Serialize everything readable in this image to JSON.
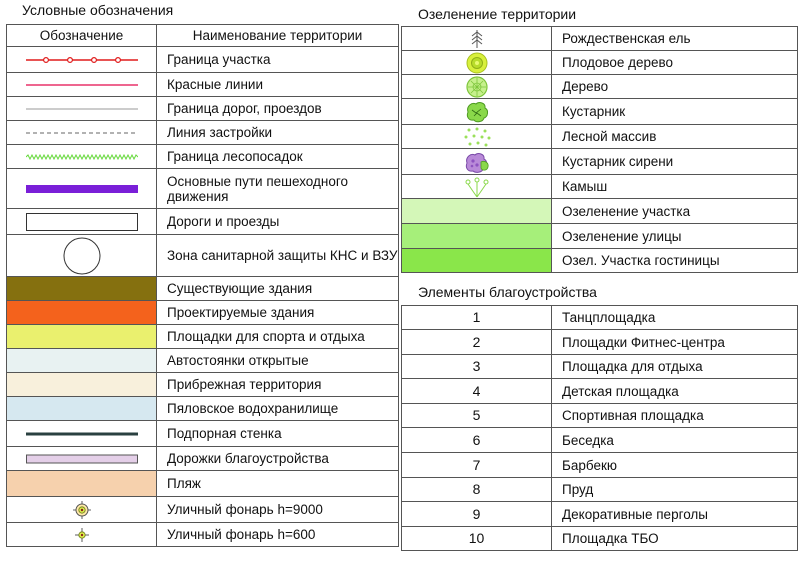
{
  "legend": {
    "title": "Условные обозначения",
    "header": {
      "symbol": "Обозначение",
      "name": "Наименование территории"
    },
    "rows": [
      {
        "label": "Граница участка",
        "icon": "red-boundary-line-icon"
      },
      {
        "label": "Красные линии",
        "icon": "red-line-icon"
      },
      {
        "label": "Граница дорог, проездов",
        "icon": "gray-thin-line-icon"
      },
      {
        "label": "Линия застройки",
        "icon": "dashed-line-icon"
      },
      {
        "label": "Граница лесопосадок",
        "icon": "green-wavy-line-icon"
      },
      {
        "label": "Основные пути пешеходного движения",
        "icon": "purple-bar-icon",
        "color": "#7a1fd8"
      },
      {
        "label": "Дороги и проезды",
        "icon": "road-rect-icon"
      },
      {
        "label": "Зона санитарной защиты КНС и ВЗУ",
        "icon": "circle-zone-icon"
      },
      {
        "label": "Существующие здания",
        "color": "#85700f"
      },
      {
        "label": "Проектируемые здания",
        "color": "#f4621c"
      },
      {
        "label": "Площадки для спорта и отдыха",
        "color": "#eaf06e"
      },
      {
        "label": "Автостоянки открытые",
        "color": "#e8f2f2"
      },
      {
        "label": "Прибрежная территория",
        "color": "#f8f0dc"
      },
      {
        "label": "Пяловское водохранилище",
        "color": "#d6e8f0"
      },
      {
        "label": "Подпорная стенка",
        "icon": "dark-wall-line-icon",
        "color": "#2a4040"
      },
      {
        "label": "Дорожки благоустройства",
        "icon": "lilac-bar-icon",
        "color": "#e4cfe8"
      },
      {
        "label": "Пляж",
        "color": "#f6d1ad"
      },
      {
        "label": "Уличный фонарь h=9000",
        "icon": "street-lamp-large-icon"
      },
      {
        "label": "Уличный фонарь h=600",
        "icon": "street-lamp-small-icon"
      }
    ]
  },
  "greening": {
    "title": "Озеленение территории",
    "rows": [
      {
        "label": "Рождественская ель",
        "icon": "christmas-tree-icon"
      },
      {
        "label": "Плодовое дерево",
        "icon": "fruit-tree-icon"
      },
      {
        "label": "Дерево",
        "icon": "tree-icon"
      },
      {
        "label": "Кустарник",
        "icon": "shrub-icon"
      },
      {
        "label": "Лесной массив",
        "icon": "forest-dots-icon"
      },
      {
        "label": "Кустарник сирени",
        "icon": "lilac-shrub-icon"
      },
      {
        "label": "Камыш",
        "icon": "reed-icon"
      },
      {
        "label": "Озеленение участка",
        "color": "#d4f7b8"
      },
      {
        "label": "Озеленение улицы",
        "color": "#a6ef7a"
      },
      {
        "label": "Озел. Участка гостиницы",
        "color": "#8ae64a"
      }
    ]
  },
  "amenities": {
    "title": "Элементы благоустройства",
    "rows": [
      {
        "num": "1",
        "label": "Танцплощадка"
      },
      {
        "num": "2",
        "label": "Площадки Фитнес-центра"
      },
      {
        "num": "3",
        "label": "Площадка для отдыха"
      },
      {
        "num": "4",
        "label": "Детская площадка"
      },
      {
        "num": "5",
        "label": "Спортивная площадка"
      },
      {
        "num": "6",
        "label": "Беседка"
      },
      {
        "num": "7",
        "label": "Барбекю"
      },
      {
        "num": "8",
        "label": "Пруд"
      },
      {
        "num": "9",
        "label": "Декоративные перголы"
      },
      {
        "num": "10",
        "label": "Площадка ТБО"
      }
    ]
  }
}
